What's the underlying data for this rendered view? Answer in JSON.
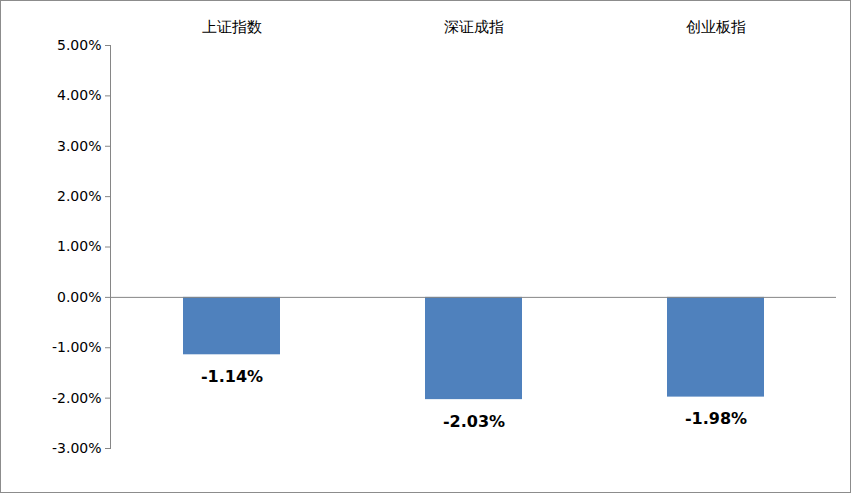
{
  "chart_data": {
    "type": "bar",
    "categories": [
      "上证指数",
      "深证成指",
      "创业板指"
    ],
    "values": [
      -1.14,
      -2.03,
      -1.98
    ],
    "value_labels": [
      "-1.14%",
      "-2.03%",
      "-1.98%"
    ],
    "color": "#4f81bd",
    "ylim": [
      -3,
      5
    ],
    "yticks": [
      {
        "value": -3,
        "label": "-3.00%"
      },
      {
        "value": -2,
        "label": "-2.00%"
      },
      {
        "value": -1,
        "label": "-1.00%"
      },
      {
        "value": 0,
        "label": "0.00%"
      },
      {
        "value": 1,
        "label": "1.00%"
      },
      {
        "value": 2,
        "label": "2.00%"
      },
      {
        "value": 3,
        "label": "3.00%"
      },
      {
        "value": 4,
        "label": "4.00%"
      },
      {
        "value": 5,
        "label": "5.00%"
      }
    ],
    "data_labels": true,
    "grid": false
  }
}
